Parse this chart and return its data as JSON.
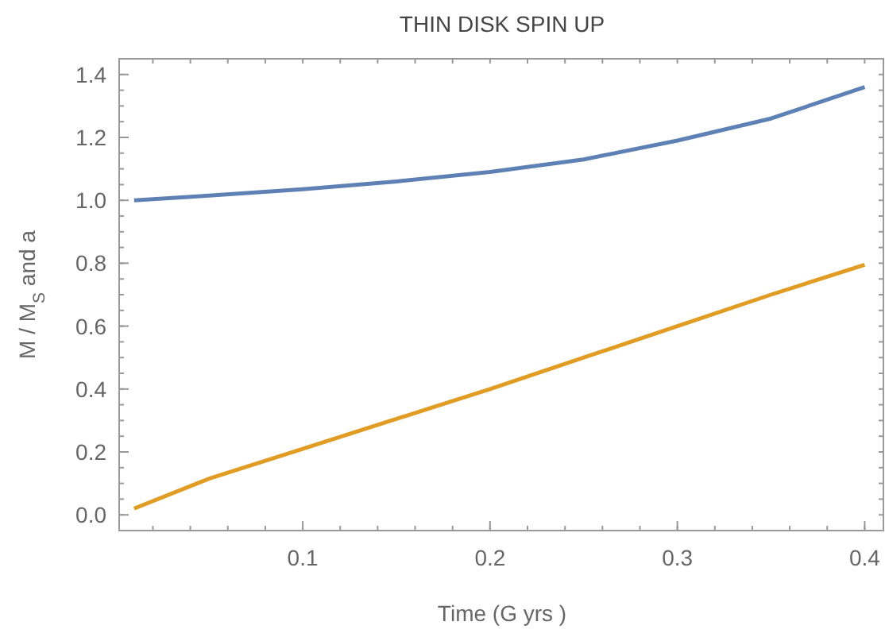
{
  "chart_data": {
    "type": "line",
    "title": "THIN  DISK   SPIN  UP",
    "xlabel": "Time  (G yrs )",
    "ylabel": "M / M$_{S}$  and  a",
    "xlim": [
      0.002,
      0.41
    ],
    "ylim": [
      -0.05,
      1.45
    ],
    "xticks": [
      0.1,
      0.2,
      0.3,
      0.4
    ],
    "yticks": [
      {
        "value": 0,
        "label": "0.0"
      },
      0.2,
      0.4,
      0.6,
      0.8,
      {
        "value": 1,
        "label": "1.0"
      },
      1.2,
      1.4
    ],
    "x": [
      0.01,
      0.05,
      0.1,
      0.15,
      0.2,
      0.25,
      0.3,
      0.35,
      0.4
    ],
    "series": [
      {
        "color": "#5e81b5",
        "values": [
          1.0,
          1.015,
          1.035,
          1.06,
          1.09,
          1.13,
          1.19,
          1.26,
          1.36
        ]
      },
      {
        "color": "#e19c24",
        "values": [
          0.02,
          0.115,
          0.21,
          0.305,
          0.4,
          0.5,
          0.6,
          0.7,
          0.795
        ]
      }
    ],
    "grid": false,
    "marker": "none",
    "line_style": "solid"
  }
}
